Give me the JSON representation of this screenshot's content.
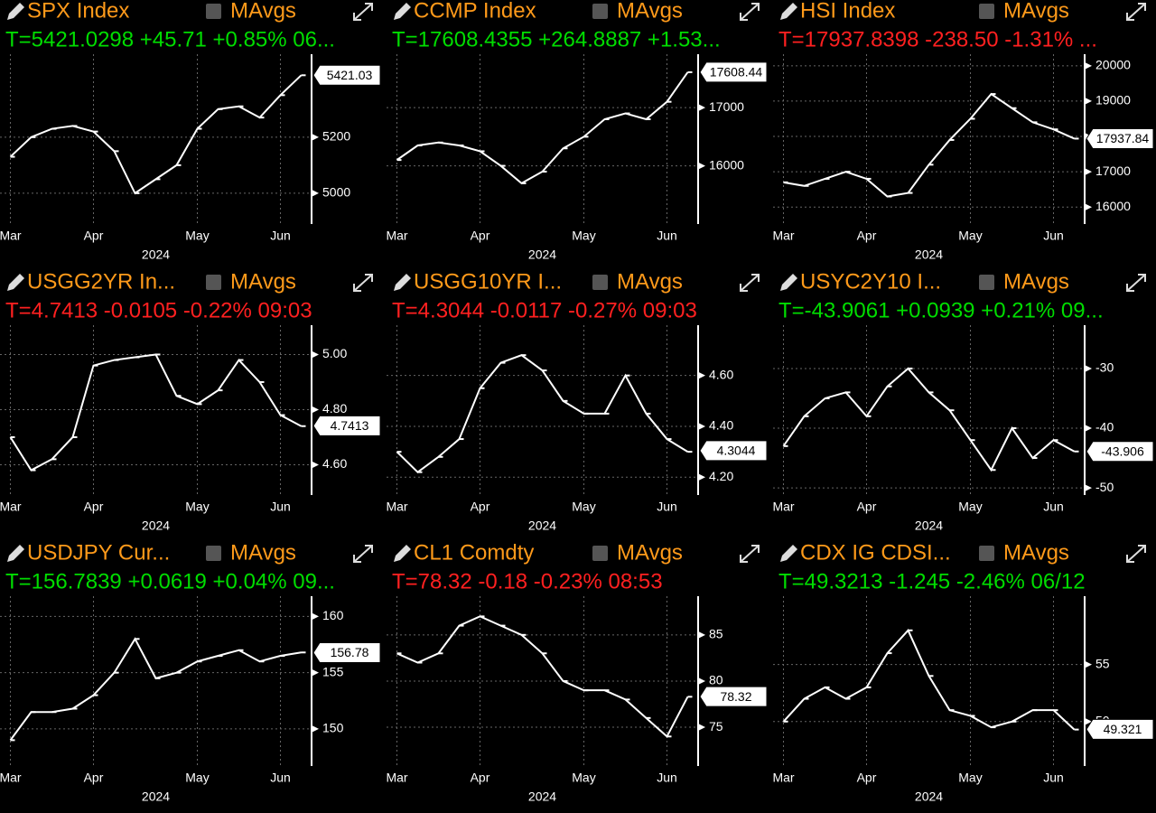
{
  "chart_data": [
    {
      "type": "line",
      "title": "SPX Index",
      "legend_label": "MAvgs",
      "quote": "T=5421.0298 +45.71 +0.85% 06...",
      "quote_color": "#00dd00",
      "year_label": "2024",
      "categories": [
        "Mar",
        null,
        null,
        null,
        "Apr",
        null,
        null,
        null,
        null,
        "May",
        null,
        null,
        null,
        "Jun",
        null
      ],
      "values": [
        5130,
        5200,
        5230,
        5240,
        5220,
        5150,
        5000,
        5050,
        5100,
        5230,
        5300,
        5310,
        5270,
        5350,
        5421
      ],
      "last_value": 5421.03,
      "ylim": [
        4890,
        5480
      ],
      "yticks": [
        5000,
        5200
      ],
      "color": "#ffffff",
      "grid": true
    },
    {
      "type": "line",
      "title": "CCMP Index",
      "legend_label": "MAvgs",
      "quote": "T=17608.4355 +264.8887 +1.53...",
      "quote_color": "#00dd00",
      "year_label": "2024",
      "categories": [
        "Mar",
        null,
        null,
        null,
        "Apr",
        null,
        null,
        null,
        null,
        "May",
        null,
        null,
        null,
        "Jun",
        null
      ],
      "values": [
        16100,
        16350,
        16400,
        16350,
        16250,
        16000,
        15700,
        15900,
        16300,
        16500,
        16800,
        16900,
        16800,
        17100,
        17608
      ],
      "last_value": 17608.44,
      "ylim": [
        15000,
        17840
      ],
      "yticks": [
        16000,
        17000
      ],
      "color": "#ffffff",
      "grid": true
    },
    {
      "type": "line",
      "title": "HSI Index",
      "legend_label": "MAvgs",
      "quote": "T=17937.8398 -238.50 -1.31% ...",
      "quote_color": "#ff2020",
      "year_label": "2024",
      "categories": [
        "Mar",
        null,
        null,
        null,
        "Apr",
        null,
        null,
        null,
        null,
        "May",
        null,
        null,
        null,
        "Jun",
        null
      ],
      "values": [
        16700,
        16600,
        16800,
        17000,
        16800,
        16300,
        16400,
        17200,
        17900,
        18500,
        19200,
        18800,
        18400,
        18200,
        17938
      ],
      "last_value": 17937.84,
      "ylim": [
        15520,
        20200
      ],
      "yticks": [
        16000,
        17000,
        18000,
        19000,
        20000
      ],
      "color": "#ffffff",
      "grid": true
    },
    {
      "type": "line",
      "title": "USGG2YR In...",
      "legend_label": "MAvgs",
      "quote": "T=4.7413 -0.0105 -0.22% 09:03",
      "quote_color": "#ff2020",
      "year_label": "2024",
      "categories": [
        "Mar",
        null,
        null,
        null,
        "Apr",
        null,
        null,
        null,
        null,
        "May",
        null,
        null,
        null,
        "Jun",
        null
      ],
      "values": [
        4.7,
        4.58,
        4.62,
        4.7,
        4.96,
        4.98,
        4.99,
        5.0,
        4.85,
        4.82,
        4.87,
        4.98,
        4.9,
        4.78,
        4.74
      ],
      "last_value": 4.7413,
      "ylim": [
        4.49,
        5.09
      ],
      "yticks": [
        {
          "value": 4.6,
          "label": "4.60"
        },
        {
          "value": 4.8,
          "label": "4.80"
        },
        {
          "value": 5.0,
          "label": "5.00"
        }
      ],
      "color": "#ffffff",
      "grid": true
    },
    {
      "type": "line",
      "title": "USGG10YR I...",
      "legend_label": "MAvgs",
      "quote": "T=4.3044 -0.0117 -0.27% 09:03",
      "quote_color": "#ff2020",
      "year_label": "2024",
      "categories": [
        "Mar",
        null,
        null,
        null,
        "Apr",
        null,
        null,
        null,
        null,
        "May",
        null,
        null,
        null,
        "Jun",
        null
      ],
      "values": [
        4.3,
        4.22,
        4.28,
        4.35,
        4.55,
        4.65,
        4.68,
        4.62,
        4.5,
        4.45,
        4.45,
        4.6,
        4.45,
        4.35,
        4.3
      ],
      "last_value": 4.3044,
      "ylim": [
        4.13,
        4.78
      ],
      "yticks": [
        {
          "value": 4.2,
          "label": "4.20"
        },
        {
          "value": 4.4,
          "label": "4.40"
        },
        {
          "value": 4.6,
          "label": "4.60"
        }
      ],
      "color": "#ffffff",
      "grid": true
    },
    {
      "type": "line",
      "title": "USYC2Y10 I...",
      "legend_label": "MAvgs",
      "quote": "T=-43.9061 +0.0939 +0.21% 09...",
      "quote_color": "#00dd00",
      "year_label": "2024",
      "categories": [
        "Mar",
        null,
        null,
        null,
        "Apr",
        null,
        null,
        null,
        null,
        "May",
        null,
        null,
        null,
        "Jun",
        null
      ],
      "values": [
        -43,
        -38,
        -35,
        -34,
        -38,
        -33,
        -30,
        -34,
        -37,
        -42,
        -47,
        -40,
        -45,
        -42,
        -43.9
      ],
      "last_value": -43.906,
      "ylim": [
        -51.2,
        -23.5
      ],
      "yticks": [
        -50,
        -40,
        -30
      ],
      "color": "#ffffff",
      "grid": true
    },
    {
      "type": "line",
      "title": "USDJPY Cur...",
      "legend_label": "MAvgs",
      "quote": "T=156.7839 +0.0619 +0.04% 09...",
      "quote_color": "#00dd00",
      "year_label": "2024",
      "categories": [
        "Mar",
        null,
        null,
        null,
        "Apr",
        null,
        null,
        null,
        null,
        "May",
        null,
        null,
        null,
        "Jun",
        null
      ],
      "values": [
        149,
        151.5,
        151.5,
        151.8,
        153,
        155,
        158,
        154.5,
        155,
        156,
        156.5,
        157,
        156,
        156.5,
        156.8
      ],
      "last_value": 156.78,
      "ylim": [
        146.7,
        161.4
      ],
      "yticks": [
        150,
        155,
        160
      ],
      "color": "#ffffff",
      "grid": true
    },
    {
      "type": "line",
      "title": "CL1 Comdty",
      "legend_label": "MAvgs",
      "quote": "T=78.32 -0.18 -0.23% 08:53",
      "quote_color": "#ff2020",
      "year_label": "2024",
      "categories": [
        "Mar",
        null,
        null,
        null,
        "Apr",
        null,
        null,
        null,
        null,
        "May",
        null,
        null,
        null,
        "Jun",
        null
      ],
      "values": [
        83,
        82,
        83,
        86,
        87,
        86,
        85,
        83,
        80,
        79,
        79,
        78,
        76,
        74,
        78.3
      ],
      "last_value": 78.32,
      "ylim": [
        70.8,
        88.7
      ],
      "yticks": [
        75,
        80,
        85
      ],
      "color": "#ffffff",
      "grid": true
    },
    {
      "type": "line",
      "title": "CDX IG CDSI...",
      "legend_label": "MAvgs",
      "quote": "T=49.3213 -1.245 -2.46% 06/12",
      "quote_color": "#00dd00",
      "year_label": "2024",
      "categories": [
        "Mar",
        null,
        null,
        null,
        "Apr",
        null,
        null,
        null,
        null,
        "May",
        null,
        null,
        null,
        "Jun",
        null
      ],
      "values": [
        50,
        52,
        53,
        52,
        53,
        56,
        58,
        54,
        51,
        50.5,
        49.5,
        50,
        51,
        51,
        49.3
      ],
      "last_value": 49.321,
      "ylim": [
        46.1,
        60.6
      ],
      "yticks": [
        50,
        55
      ],
      "color": "#ffffff",
      "grid": true
    }
  ]
}
